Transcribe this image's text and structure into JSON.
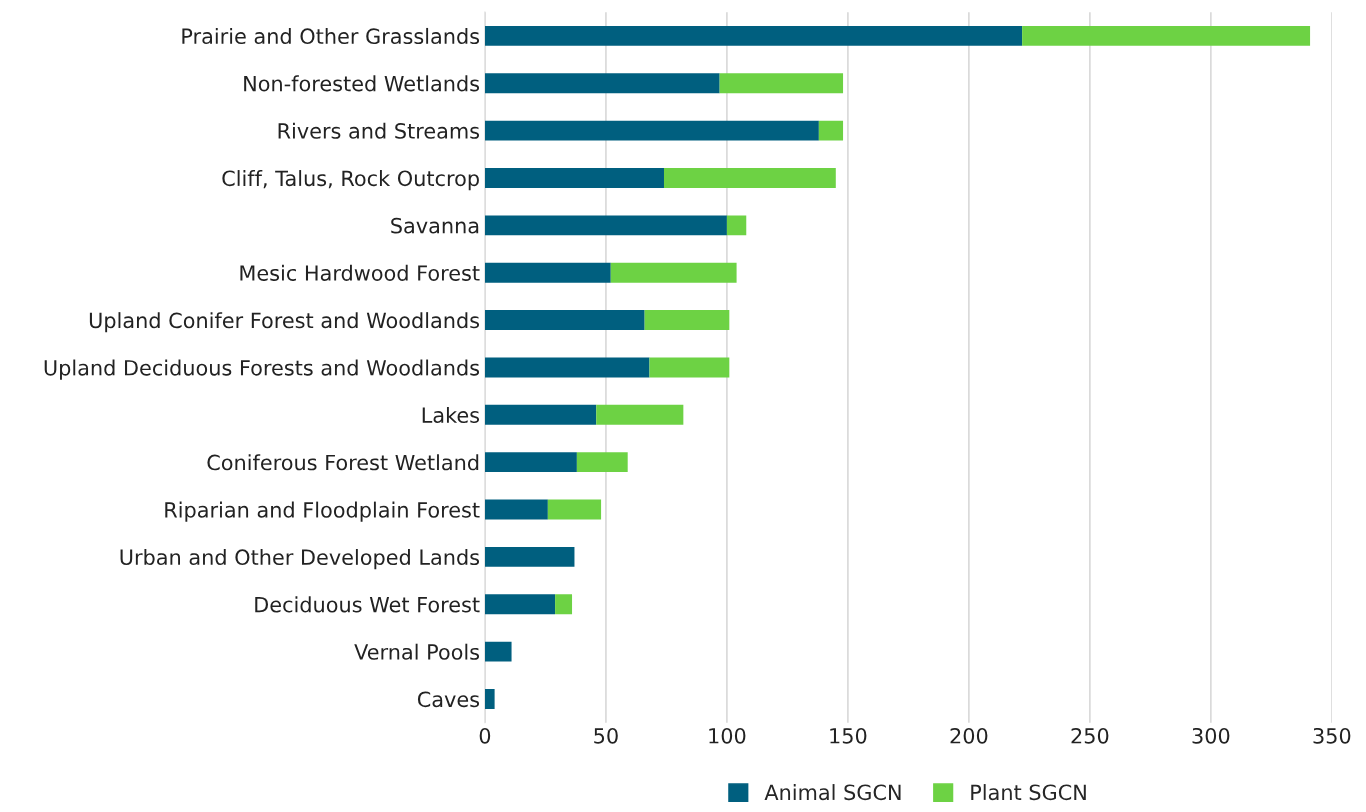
{
  "chart_data": {
    "type": "bar",
    "orientation": "horizontal",
    "stacked": true,
    "categories": [
      "Prairie and Other Grasslands",
      "Non-forested Wetlands",
      "Rivers and Streams",
      "Cliff, Talus, Rock Outcrop",
      "Savanna",
      "Mesic Hardwood Forest",
      "Upland Conifer Forest and Woodlands",
      "Upland Deciduous Forests and Woodlands",
      "Lakes",
      "Coniferous Forest Wetland",
      "Riparian and Floodplain Forest",
      "Urban and Other Developed Lands",
      "Deciduous Wet Forest",
      "Vernal Pools",
      "Caves"
    ],
    "series": [
      {
        "name": "Animal SGCN",
        "color": "#005f7f",
        "values": [
          222,
          97,
          138,
          74,
          100,
          52,
          66,
          68,
          46,
          38,
          26,
          37,
          29,
          11,
          4
        ]
      },
      {
        "name": "Plant SGCN",
        "color": "#6dd244",
        "values": [
          119,
          51,
          10,
          71,
          8,
          52,
          35,
          33,
          36,
          21,
          22,
          0,
          7,
          0,
          0
        ]
      }
    ],
    "xlim": [
      0,
      350
    ],
    "xticks": [
      0,
      50,
      100,
      150,
      200,
      250,
      300,
      350
    ],
    "grid": "x",
    "legend": "bottom"
  }
}
